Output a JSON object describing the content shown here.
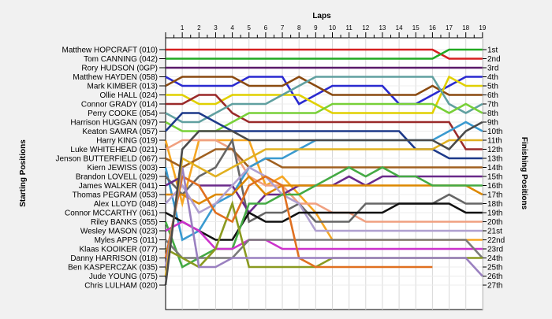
{
  "chart_data": {
    "type": "line",
    "title": "Laps",
    "ylabel_left": "Starting Positions",
    "ylabel_right": "Finishing Positions",
    "laps": [
      1,
      2,
      3,
      4,
      5,
      6,
      7,
      8,
      9,
      10,
      11,
      12,
      13,
      14,
      15,
      16,
      17,
      18,
      19
    ],
    "finishing_labels": [
      "1st",
      "2nd",
      "3rd",
      "4th",
      "5th",
      "6th",
      "7th",
      "8th",
      "9th",
      "10th",
      "11th",
      "12th",
      "13th",
      "14th",
      "15th",
      "16th",
      "17th",
      "18th",
      "19th",
      "20th",
      "21st",
      "22nd",
      "23rd",
      "24th",
      "25th",
      "26th",
      "27th"
    ],
    "drivers": [
      {
        "name": "Matthew HOPCRAFT (010)",
        "color": "#d62020",
        "positions": [
          1,
          1,
          1,
          1,
          1,
          1,
          1,
          1,
          1,
          1,
          1,
          1,
          1,
          1,
          1,
          1,
          1,
          2,
          2,
          2
        ]
      },
      {
        "name": "Tom CANNING (042)",
        "color": "#22aa22",
        "positions": [
          2,
          2,
          2,
          2,
          2,
          2,
          2,
          2,
          2,
          2,
          2,
          2,
          2,
          2,
          2,
          2,
          2,
          1,
          1,
          1
        ]
      },
      {
        "name": "Rory HUDSON (0GP)",
        "color": "#5a1a6a",
        "positions": [
          3,
          3,
          3,
          3,
          3,
          3,
          3,
          3,
          3,
          3,
          3,
          3,
          3,
          3,
          3,
          3,
          3,
          3,
          3,
          3
        ]
      },
      {
        "name": "Matthew HAYDEN (058)",
        "color": "#2a2ad0",
        "positions": [
          4,
          5,
          5,
          5,
          5,
          4,
          4,
          4,
          7,
          6,
          5,
          5,
          5,
          5,
          7,
          7,
          6,
          5,
          4,
          4
        ]
      },
      {
        "name": "Mark KIMBER (013)",
        "color": "#8a4a10",
        "positions": [
          5,
          4,
          4,
          4,
          4,
          5,
          5,
          5,
          4,
          5,
          6,
          6,
          6,
          6,
          6,
          6,
          5,
          6,
          6,
          6
        ]
      },
      {
        "name": "Ollie HALL (024)",
        "color": "#e0d000",
        "positions": [
          6,
          6,
          7,
          7,
          6,
          6,
          6,
          6,
          6,
          7,
          8,
          8,
          8,
          8,
          8,
          8,
          8,
          4,
          5,
          5
        ]
      },
      {
        "name": "Connor GRADY (014)",
        "color": "#9a2a2a",
        "positions": [
          7,
          7,
          6,
          6,
          8,
          9,
          9,
          9,
          9,
          9,
          9,
          9,
          9,
          9,
          9,
          9,
          9,
          9,
          12,
          12
        ]
      },
      {
        "name": "Perry COOKE (054)",
        "color": "#60a0a0",
        "positions": [
          8,
          9,
          9,
          8,
          7,
          7,
          7,
          6,
          5,
          4,
          4,
          4,
          4,
          4,
          4,
          4,
          4,
          7,
          8,
          7
        ]
      },
      {
        "name": "Harrison HUGGAN (097)",
        "color": "#78d038",
        "positions": [
          9,
          10,
          10,
          10,
          9,
          8,
          8,
          8,
          8,
          8,
          7,
          7,
          7,
          7,
          7,
          7,
          7,
          8,
          7,
          8
        ]
      },
      {
        "name": "Keaton SAMRA (057)",
        "color": "#1e3a8a",
        "positions": [
          10,
          8,
          8,
          9,
          10,
          10,
          10,
          10,
          10,
          10,
          10,
          10,
          10,
          10,
          10,
          12,
          12,
          13,
          13,
          13
        ]
      },
      {
        "name": "Harry KING (019)",
        "color": "#f5a623",
        "positions": [
          11,
          18,
          11,
          11,
          11,
          11,
          16,
          15,
          17,
          19,
          22,
          22,
          22,
          22,
          22,
          22,
          22,
          22,
          22,
          22
        ]
      },
      {
        "name": "Luke WHITEHEAD (021)",
        "color": "#f0a080",
        "positions": [
          12,
          11,
          11,
          11,
          12,
          15,
          16,
          16,
          18,
          18,
          19,
          19,
          20,
          20,
          20,
          20,
          20,
          20,
          20,
          20
        ]
      },
      {
        "name": "Jenson BUTTERFIELD (067)",
        "color": "#a06020",
        "positions": [
          13,
          14,
          13,
          12,
          12,
          14,
          13,
          14,
          14,
          14,
          14,
          14,
          14,
          14,
          14,
          14,
          14,
          14,
          14,
          14
        ]
      },
      {
        "name": "Kiern JEWISS (003)",
        "color": "#3a9ad0",
        "positions": [
          14,
          22,
          21,
          18,
          17,
          14,
          13,
          13,
          12,
          11,
          11,
          11,
          11,
          11,
          11,
          11,
          11,
          10,
          9,
          10
        ]
      },
      {
        "name": "Brandon LOVELL (029)",
        "color": "#666666",
        "positions": [
          15,
          17,
          15,
          14,
          11,
          20,
          19,
          19,
          18,
          20,
          20,
          20,
          18,
          18,
          18,
          18,
          18,
          17,
          18,
          18
        ]
      },
      {
        "name": "James WALKER (041)",
        "color": "#6a2a8a",
        "positions": [
          16,
          15,
          16,
          16,
          16,
          19,
          17,
          17,
          16,
          16,
          16,
          15,
          16,
          15,
          15,
          15,
          15,
          15,
          15,
          15
        ]
      },
      {
        "name": "Thomas PEGRAM (053)",
        "color": "#dd8800",
        "positions": [
          17,
          17,
          18,
          17,
          17,
          15,
          17,
          16,
          16,
          16,
          16,
          16,
          16,
          16,
          16,
          16,
          16,
          16,
          16,
          17
        ]
      },
      {
        "name": "Alex LLOYD (048)",
        "color": "#b0a0d0",
        "positions": [
          18,
          16,
          19,
          18,
          16,
          14,
          15,
          17,
          18,
          21,
          21,
          21,
          21,
          21,
          21,
          21,
          21,
          21,
          21,
          21
        ]
      },
      {
        "name": "Connor MCCARTHY (061)",
        "color": "#111111",
        "positions": [
          19,
          20,
          21,
          22,
          22,
          19,
          20,
          20,
          19,
          19,
          19,
          19,
          19,
          19,
          18,
          18,
          18,
          18,
          19,
          19
        ]
      },
      {
        "name": "Riley BANKS (055)",
        "color": "#44aa44",
        "positions": [
          20,
          25,
          24,
          23,
          23,
          18,
          18,
          17,
          17,
          16,
          15,
          14,
          15,
          14,
          15,
          15,
          16,
          16,
          16,
          16
        ]
      },
      {
        "name": "Wesley MASON (023)",
        "color": "#cc33cc",
        "positions": [
          21,
          20,
          21,
          23,
          23,
          22,
          22,
          23,
          23,
          23,
          23,
          23,
          23,
          23,
          23,
          23,
          23,
          23,
          23,
          23
        ]
      },
      {
        "name": "Myles APPS (011)",
        "color": "#7a7a7a",
        "positions": [
          22,
          24,
          24,
          24,
          24,
          22,
          22,
          22,
          22,
          22,
          22,
          22,
          22,
          22,
          22,
          22,
          22,
          22,
          22,
          24
        ]
      },
      {
        "name": "Klaas KOOIKER (077)",
        "color": "#8a9a20",
        "positions": [
          23,
          24,
          25,
          23,
          18,
          25,
          25,
          25,
          25,
          25,
          24,
          24,
          24,
          24,
          24,
          24,
          24,
          24,
          24,
          24
        ]
      },
      {
        "name": "Danny HARRISON (018)",
        "color": "#e07020",
        "positions": [
          24,
          15,
          16,
          19,
          20,
          16,
          15,
          16,
          24,
          25,
          25,
          25,
          25,
          25,
          25,
          25,
          25
        ]
      },
      {
        "name": "Ben KASPERCZAK (035)",
        "color": "#9a80c0",
        "positions": [
          25,
          14,
          25,
          25,
          24,
          24,
          24,
          24,
          24,
          24,
          24,
          24,
          24,
          24,
          24,
          24,
          24,
          24,
          24,
          26
        ]
      },
      {
        "name": "Jude YOUNG (075)",
        "color": "#e0b020",
        "positions": [
          26,
          13,
          14,
          15,
          14,
          13,
          12,
          12,
          12,
          12,
          12,
          12,
          12,
          12,
          12,
          12,
          12,
          11,
          11,
          11
        ]
      },
      {
        "name": "Chris LULHAM (020)",
        "color": "#4a4a4a",
        "positions": [
          27,
          12,
          10,
          10,
          10,
          11,
          11,
          11,
          11,
          11,
          11,
          11,
          11,
          11,
          11,
          11,
          11,
          12,
          10,
          9
        ]
      }
    ]
  }
}
